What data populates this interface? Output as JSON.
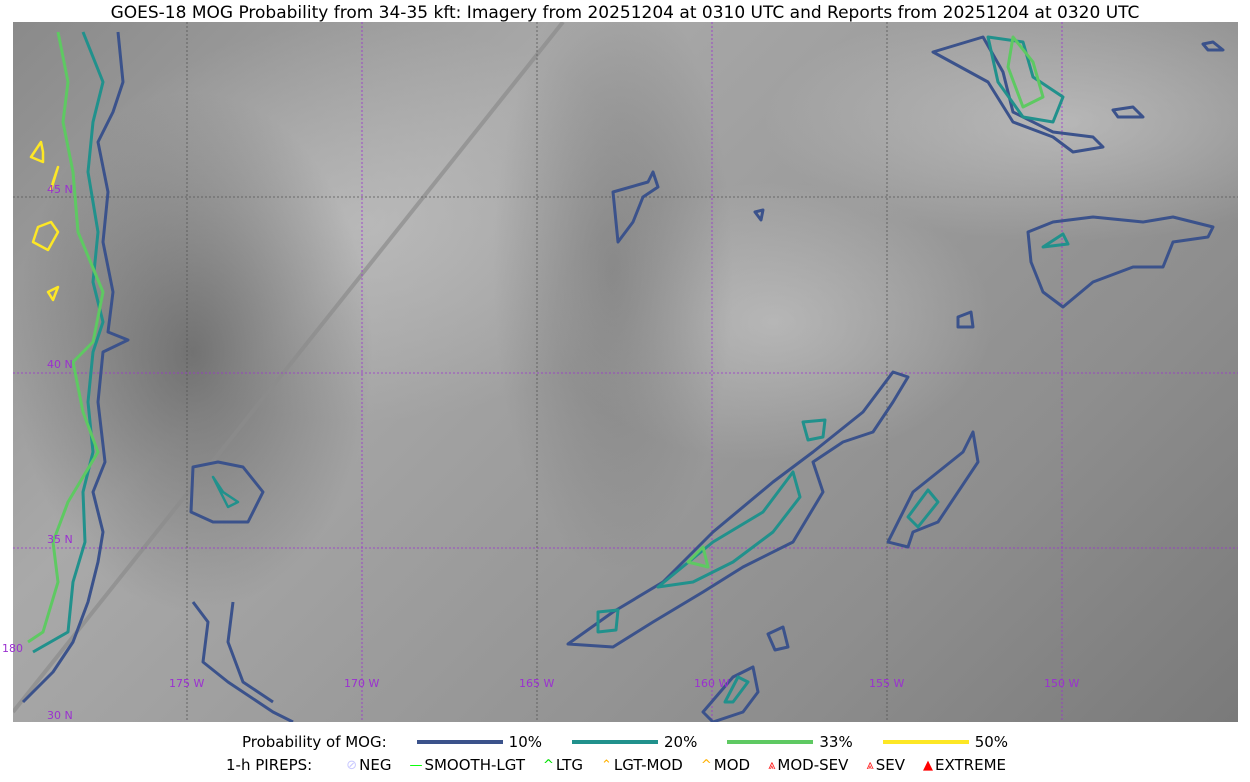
{
  "title": "GOES-18 MOG Probability from 34-35 kft: Imagery from 20251204 at 0310 UTC and Reports from 20251204 at 0320 UTC",
  "map": {
    "lon_labels": [
      "180",
      "175 W",
      "170 W",
      "165 W",
      "160 W",
      "155 W",
      "150 W"
    ],
    "lat_labels": [
      "45 N",
      "40 N",
      "35 N",
      "30 N"
    ],
    "grid_color": "#9b30d0",
    "contour_colors": {
      "p10": "#3b528b",
      "p20": "#21918c",
      "p33": "#5ec962",
      "p50": "#fde725"
    }
  },
  "legend": {
    "prob_label": "Probability of MOG:",
    "prob_items": [
      {
        "label": "10%",
        "color": "#3b528b"
      },
      {
        "label": "20%",
        "color": "#21918c"
      },
      {
        "label": "33%",
        "color": "#5ec962"
      },
      {
        "label": "50%",
        "color": "#fde725"
      }
    ],
    "pirep_label": "1-h PIREPS:",
    "pirep_items": [
      {
        "label": "NEG",
        "icon": "neg-icon",
        "color": "#c8c8ff",
        "glyph": "⊘"
      },
      {
        "label": "SMOOTH-LGT",
        "icon": "smooth-line-icon",
        "color": "#00ff00",
        "glyph": "—"
      },
      {
        "label": "LTG",
        "icon": "caret-icon",
        "color": "#00e000",
        "glyph": "^"
      },
      {
        "label": "LGT-MOD",
        "icon": "lgt-mod-icon",
        "color": "#ffb000",
        "glyph": "⌃"
      },
      {
        "label": "MOD",
        "icon": "mod-icon",
        "color": "#ffb000",
        "glyph": "^"
      },
      {
        "label": "MOD-SEV",
        "icon": "mod-sev-icon",
        "color": "#ff2020",
        "glyph": "⩓"
      },
      {
        "label": "SEV",
        "icon": "sev-icon",
        "color": "#ff2020",
        "glyph": "⩓"
      },
      {
        "label": "EXTREME",
        "icon": "extreme-icon",
        "color": "#ff0000",
        "glyph": "▲"
      }
    ]
  }
}
